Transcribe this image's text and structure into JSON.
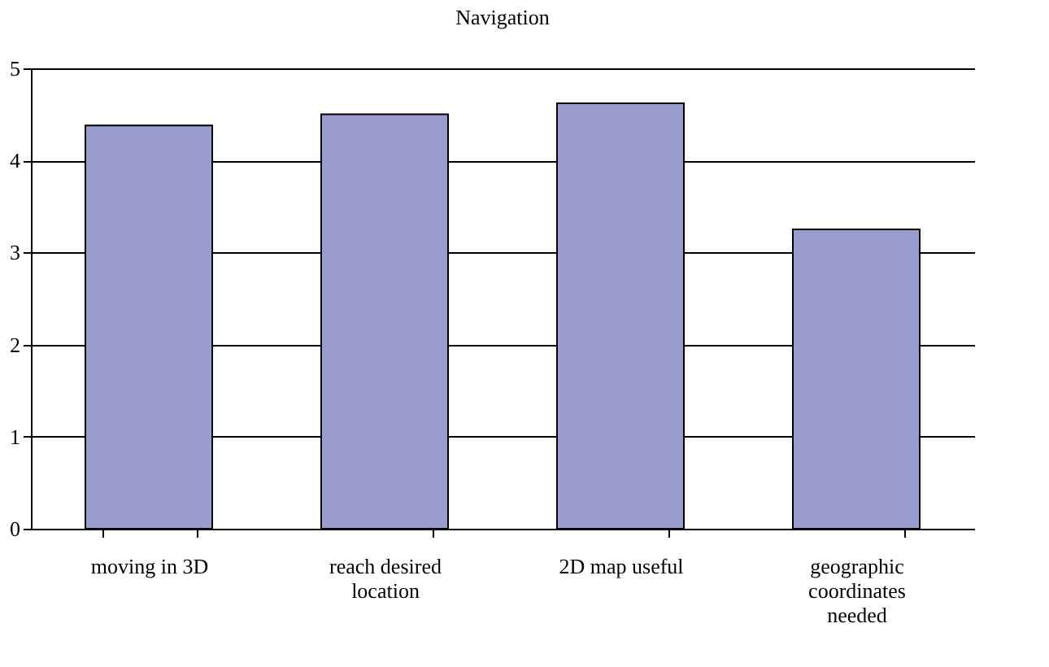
{
  "chart_data": {
    "type": "bar",
    "title": "Navigation",
    "categories": [
      "moving in 3D",
      "reach desired location",
      "2D map useful",
      "geographic coordinates needed"
    ],
    "values": [
      4.38,
      4.5,
      4.62,
      3.25
    ],
    "color": "#999ccf",
    "ylim": [
      0,
      5
    ],
    "yticks": [
      0,
      1,
      2,
      3,
      4,
      5
    ],
    "grid": "y"
  }
}
